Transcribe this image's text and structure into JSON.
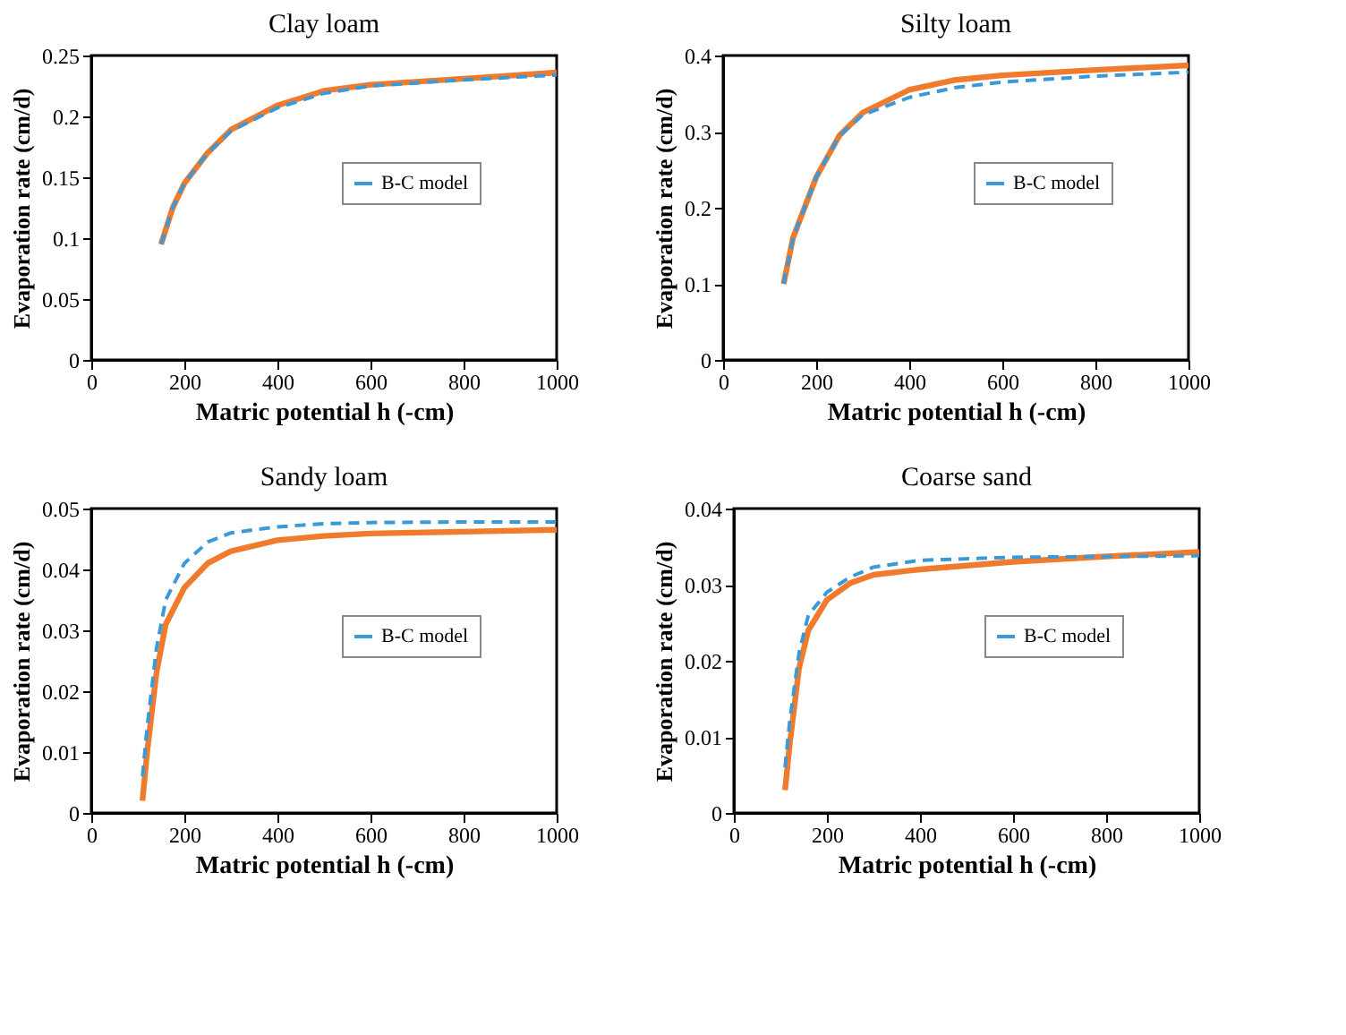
{
  "chart_data": [
    {
      "type": "line",
      "title": "Clay loam",
      "xlabel": "Matric potential h (-cm)",
      "ylabel": "Evaporation rate (cm/d)",
      "xlim": [
        0,
        1000
      ],
      "xticks": [
        0,
        200,
        400,
        600,
        800,
        1000
      ],
      "ylim": [
        0,
        0.25
      ],
      "yticks": [
        0,
        0.05,
        0.1,
        0.15,
        0.2,
        0.25
      ],
      "grid": false,
      "legend": "right",
      "series": [
        {
          "name": "B-C model",
          "color": "#3a9ad9",
          "line_style": "dashed",
          "x": [
            150,
            175,
            200,
            250,
            300,
            400,
            500,
            600,
            800,
            1000
          ],
          "values": [
            0.095,
            0.125,
            0.145,
            0.17,
            0.188,
            0.207,
            0.219,
            0.225,
            0.23,
            0.234
          ]
        },
        {
          "color": "#f07b2c",
          "line_style": "solid",
          "x": [
            150,
            175,
            200,
            250,
            300,
            400,
            500,
            600,
            800,
            1000
          ],
          "values": [
            0.095,
            0.125,
            0.145,
            0.17,
            0.189,
            0.209,
            0.221,
            0.226,
            0.231,
            0.236
          ]
        }
      ]
    },
    {
      "type": "line",
      "title": "Silty loam",
      "xlabel": "Matric potential h (-cm)",
      "ylabel": "Evaporation rate (cm/d)",
      "xlim": [
        0,
        1000
      ],
      "xticks": [
        0,
        200,
        400,
        600,
        800,
        1000
      ],
      "ylim": [
        0,
        0.4
      ],
      "yticks": [
        0,
        0.1,
        0.2,
        0.3,
        0.4
      ],
      "grid": false,
      "legend": "right",
      "series": [
        {
          "name": "B-C model",
          "color": "#3a9ad9",
          "line_style": "dashed",
          "x": [
            130,
            150,
            200,
            250,
            300,
            400,
            500,
            600,
            800,
            1000
          ],
          "values": [
            0.1,
            0.16,
            0.24,
            0.295,
            0.322,
            0.345,
            0.358,
            0.365,
            0.373,
            0.378
          ]
        },
        {
          "color": "#f07b2c",
          "line_style": "solid",
          "x": [
            130,
            150,
            200,
            250,
            300,
            400,
            500,
            600,
            800,
            1000
          ],
          "values": [
            0.1,
            0.16,
            0.24,
            0.295,
            0.325,
            0.355,
            0.368,
            0.374,
            0.381,
            0.387
          ]
        }
      ]
    },
    {
      "type": "line",
      "title": "Sandy loam",
      "xlabel": "Matric potential h (-cm)",
      "ylabel": "Evaporation rate (cm/d)",
      "xlim": [
        0,
        1000
      ],
      "xticks": [
        0,
        200,
        400,
        600,
        800,
        1000
      ],
      "ylim": [
        0,
        0.05
      ],
      "yticks": [
        0,
        0.01,
        0.02,
        0.03,
        0.04,
        0.05
      ],
      "grid": false,
      "legend": "right",
      "series": [
        {
          "name": "B-C model",
          "color": "#3a9ad9",
          "line_style": "dashed",
          "x": [
            110,
            120,
            140,
            160,
            200,
            250,
            300,
            400,
            500,
            600,
            800,
            1000
          ],
          "values": [
            0.006,
            0.014,
            0.027,
            0.035,
            0.041,
            0.0445,
            0.046,
            0.047,
            0.0475,
            0.0477,
            0.0478,
            0.0478
          ]
        },
        {
          "color": "#f07b2c",
          "line_style": "solid",
          "x": [
            110,
            120,
            140,
            160,
            200,
            250,
            300,
            400,
            500,
            600,
            800,
            1000
          ],
          "values": [
            0.002,
            0.01,
            0.023,
            0.031,
            0.037,
            0.041,
            0.043,
            0.0448,
            0.0455,
            0.0459,
            0.0462,
            0.0465
          ]
        }
      ]
    },
    {
      "type": "line",
      "title": "Coarse sand",
      "xlabel": "Matric potential h (-cm)",
      "ylabel": "Evaporation rate (cm/d)",
      "xlim": [
        0,
        1000
      ],
      "xticks": [
        0,
        200,
        400,
        600,
        800,
        1000
      ],
      "ylim": [
        0,
        0.04
      ],
      "yticks": [
        0,
        0.01,
        0.02,
        0.03,
        0.04
      ],
      "grid": false,
      "legend": "right",
      "series": [
        {
          "name": "B-C model",
          "color": "#3a9ad9",
          "line_style": "dashed",
          "x": [
            110,
            120,
            140,
            160,
            200,
            250,
            300,
            400,
            600,
            800,
            1000
          ],
          "values": [
            0.006,
            0.012,
            0.021,
            0.026,
            0.029,
            0.031,
            0.0323,
            0.0332,
            0.0336,
            0.0337,
            0.0338
          ]
        },
        {
          "color": "#f07b2c",
          "line_style": "solid",
          "x": [
            110,
            120,
            140,
            160,
            200,
            250,
            300,
            400,
            600,
            800,
            1000
          ],
          "values": [
            0.003,
            0.009,
            0.019,
            0.024,
            0.028,
            0.0302,
            0.0313,
            0.032,
            0.033,
            0.0337,
            0.0343
          ]
        }
      ]
    }
  ]
}
